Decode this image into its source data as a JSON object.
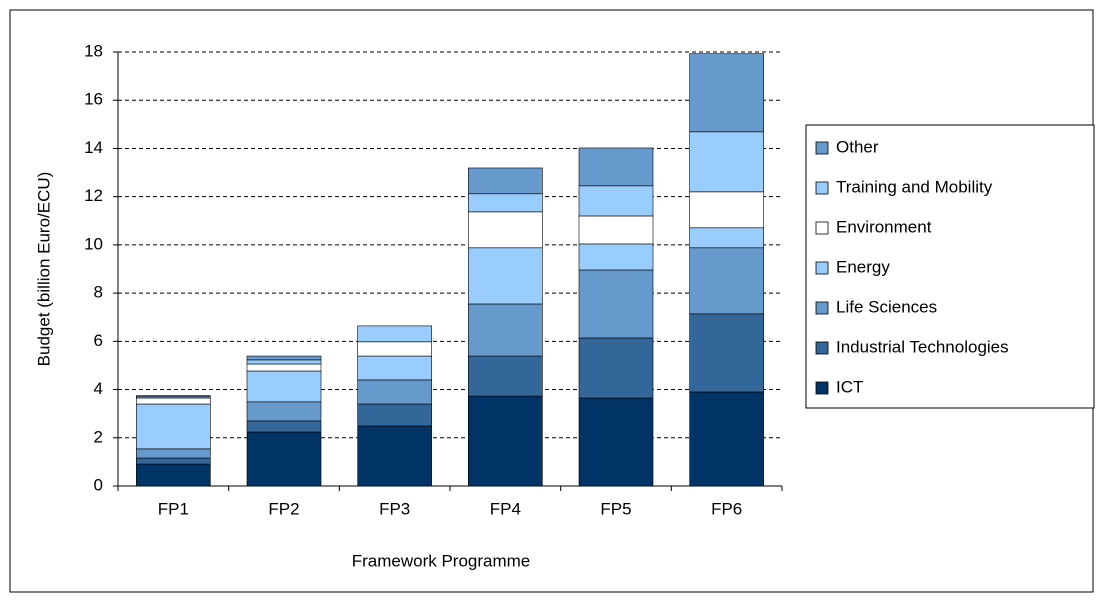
{
  "chart_data": {
    "type": "stacked_bar",
    "x_label": "Framework Programme",
    "y_label": "Budget (billion Euro/ECU)",
    "categories": [
      "FP1",
      "FP2",
      "FP3",
      "FP4",
      "FP5",
      "FP6"
    ],
    "series": [
      {
        "name": "ICT",
        "color": "#003366",
        "values": [
          0.91,
          2.24,
          2.49,
          3.73,
          3.65,
          3.9
        ]
      },
      {
        "name": "Industrial Technologies",
        "color": "#336699",
        "values": [
          0.25,
          0.46,
          0.91,
          1.66,
          2.49,
          3.24
        ]
      },
      {
        "name": "Life Sciences",
        "color": "#6699cc",
        "values": [
          0.38,
          0.79,
          1.0,
          2.16,
          2.82,
          2.74
        ]
      },
      {
        "name": "Energy",
        "color": "#99ccff",
        "values": [
          1.86,
          1.28,
          0.99,
          2.33,
          1.08,
          0.83
        ]
      },
      {
        "name": "Environment",
        "color": "#ffffff",
        "values": [
          0.25,
          0.29,
          0.59,
          1.49,
          1.16,
          1.49
        ]
      },
      {
        "name": "Training and Mobility",
        "color": "#99ccff",
        "values": [
          0.05,
          0.17,
          0.66,
          0.75,
          1.25,
          2.49
        ]
      },
      {
        "name": "Other",
        "color": "#6699cc",
        "values": [
          0.05,
          0.16,
          0,
          1.07,
          1.57,
          3.24
        ]
      }
    ],
    "ylim": [
      0,
      18
    ],
    "yticks": [
      0,
      2,
      4,
      6,
      8,
      10,
      12,
      14,
      16,
      18
    ],
    "grid": true
  }
}
